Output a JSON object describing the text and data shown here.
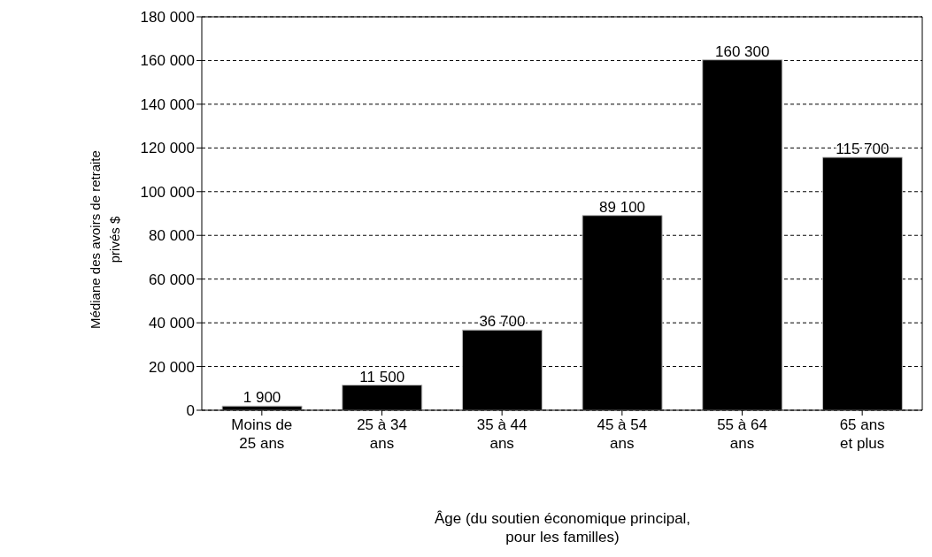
{
  "chart_data": {
    "type": "bar",
    "xlabel": "Âge (du soutien économique principal, pour les familles)",
    "ylabel": "Médiane des avoirs de retraite privés $",
    "categories": [
      "Moins de 25 ans",
      "25 à 34 ans",
      "35 à 44 ans",
      "45 à 54 ans",
      "55 à 64 ans",
      "65 ans et plus"
    ],
    "values": [
      1900,
      11500,
      36700,
      89100,
      160300,
      115700
    ],
    "value_labels": [
      "1 900",
      "11 500",
      "36 700",
      "89 100",
      "160 300",
      "115 700"
    ],
    "color": "#000000",
    "ylim": [
      0,
      180000
    ],
    "yticks": [
      {
        "value": 0,
        "label": "0"
      },
      {
        "value": 20000,
        "label": "20 000"
      },
      {
        "value": 40000,
        "label": "40 000"
      },
      {
        "value": 60000,
        "label": "60 000"
      },
      {
        "value": 80000,
        "label": "80 000"
      },
      {
        "value": 100000,
        "label": "100 000"
      },
      {
        "value": 120000,
        "label": "120 000"
      },
      {
        "value": 140000,
        "label": "140 000"
      },
      {
        "value": 160000,
        "label": "160 000"
      },
      {
        "value": 180000,
        "label": "180 000"
      }
    ],
    "grid": "y",
    "line_style": "dashed"
  }
}
